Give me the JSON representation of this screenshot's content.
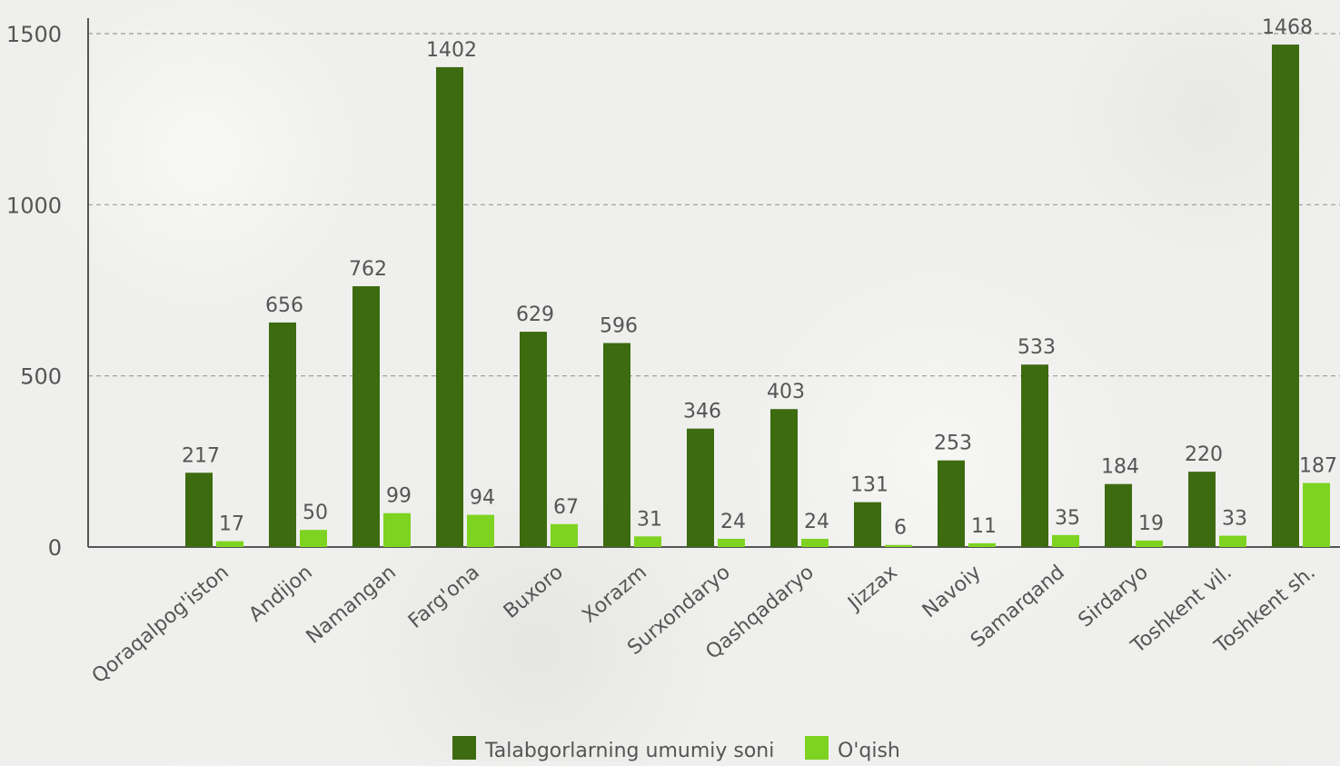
{
  "chart_data": {
    "type": "bar",
    "categories": [
      "Qoraqalpog'iston",
      "Andijon",
      "Namangan",
      "Farg'ona",
      "Buxoro",
      "Xorazm",
      "Surxondaryo",
      "Qashqadaryo",
      "Jizzax",
      "Navoiy",
      "Samarqand",
      "Sirdaryo",
      "Toshkent vil.",
      "Toshkent sh."
    ],
    "series": [
      {
        "name": "Talabgorlarning umumiy soni",
        "color": "#3d6b10",
        "values": [
          217,
          656,
          762,
          1402,
          629,
          596,
          346,
          403,
          131,
          253,
          533,
          184,
          220,
          1468
        ]
      },
      {
        "name": "O'qish",
        "color": "#7ed321",
        "values": [
          17,
          50,
          99,
          94,
          67,
          31,
          24,
          24,
          6,
          11,
          35,
          19,
          33,
          187
        ]
      }
    ],
    "yticks": [
      0,
      500,
      1000,
      1500
    ],
    "ylim": [
      0,
      1500
    ],
    "grid": true,
    "legend": "bottom"
  }
}
